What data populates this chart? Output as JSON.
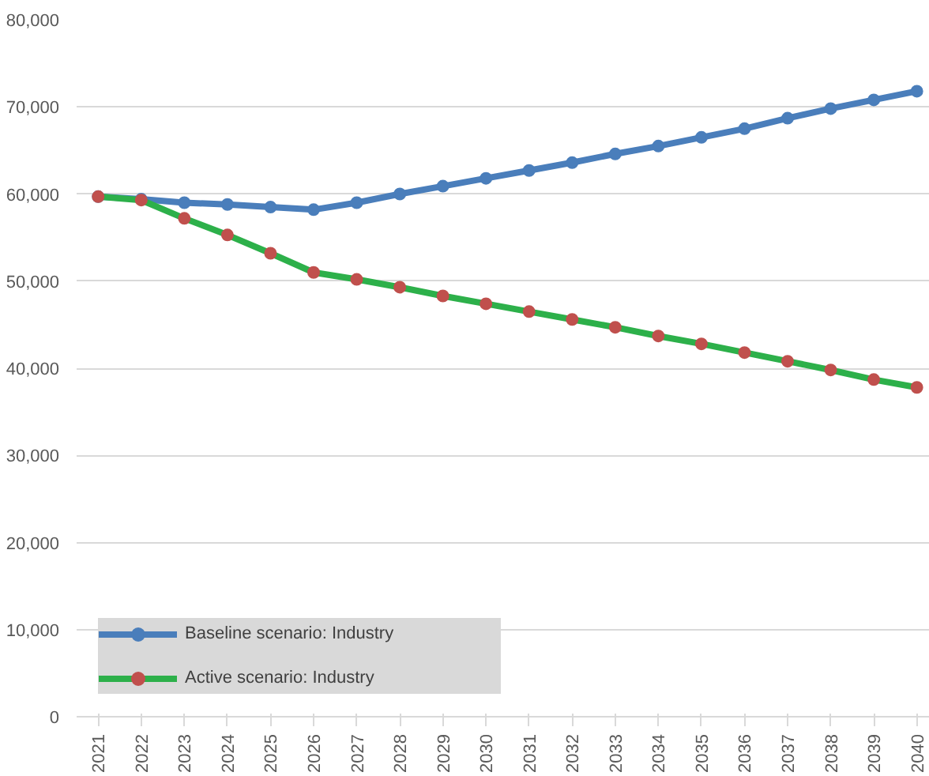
{
  "chart_data": {
    "type": "line",
    "categories": [
      "2021",
      "2022",
      "2023",
      "2024",
      "2025",
      "2026",
      "2027",
      "2028",
      "2029",
      "2030",
      "2031",
      "2032",
      "2033",
      "2034",
      "2035",
      "2036",
      "2037",
      "2038",
      "2039",
      "2040"
    ],
    "series": [
      {
        "name": "Baseline scenario: Industry",
        "color": "#4a7ebb",
        "values": [
          59700,
          59400,
          59000,
          58800,
          58500,
          58200,
          59000,
          60000,
          60900,
          61800,
          62700,
          63600,
          64600,
          65500,
          66500,
          67500,
          68700,
          69800,
          70800,
          71800
        ]
      },
      {
        "name": "Active scenario: Industry",
        "color": "#2db04a",
        "colors": [
          "#c0504d",
          "#c0504d",
          "#c0504d",
          "#c0504d",
          "#c0504d",
          "#c0504d",
          "#c0504d",
          "#c0504d",
          "#c0504d",
          "#c0504d",
          "#c0504d",
          "#c0504d",
          "#c0504d",
          "#c0504d",
          "#c0504d",
          "#c0504d",
          "#c0504d",
          "#c0504d",
          "#c0504d",
          "#c0504d"
        ],
        "values": [
          59700,
          59300,
          57200,
          55300,
          53200,
          51000,
          50200,
          49300,
          48300,
          47400,
          46500,
          45600,
          44700,
          43700,
          42800,
          41800,
          40800,
          39800,
          38700,
          37800
        ]
      }
    ],
    "ylim": [
      0,
      80000
    ],
    "yticks": [
      {
        "value": 0,
        "label": "0"
      },
      {
        "value": 10000,
        "label": "10,000"
      },
      {
        "value": 20000,
        "label": "20,000"
      },
      {
        "value": 30000,
        "label": "30,000"
      },
      {
        "value": 40000,
        "label": "40,000"
      },
      {
        "value": 50000,
        "label": "50,000"
      },
      {
        "value": 60000,
        "label": "60,000"
      },
      {
        "value": 70000,
        "label": "70,000"
      },
      {
        "value": 80000,
        "label": "80,000"
      }
    ],
    "grid": "y",
    "legend": "bottom left",
    "marker": "circle",
    "line_style": "solid"
  }
}
